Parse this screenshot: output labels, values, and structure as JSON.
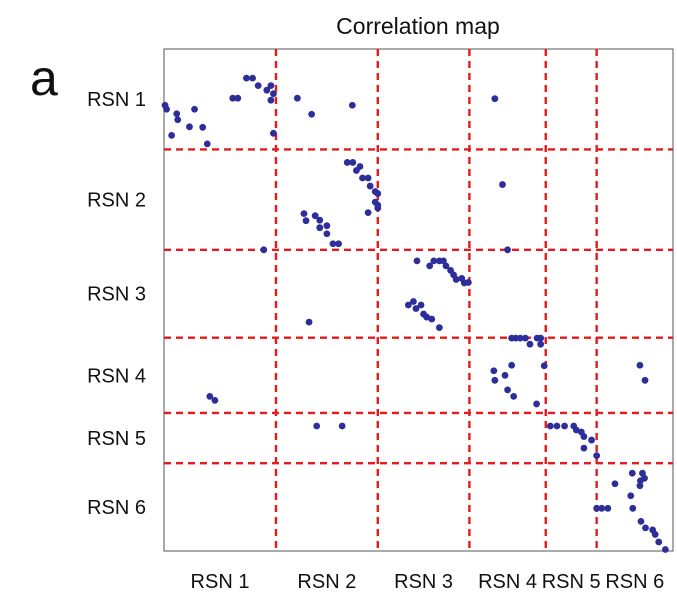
{
  "panel_label": "a",
  "chart_data": {
    "type": "scatter",
    "title": "Correlation map",
    "xlabel": "",
    "ylabel": "",
    "grid": false,
    "colors": {
      "points": "#2e2e9a",
      "dividers": "#e41a1c",
      "frame": "#555555"
    },
    "xlim": [
      0,
      100
    ],
    "ylim": [
      0,
      100
    ],
    "y_inverted": true,
    "x_group_labels": [
      "RSN 1",
      "RSN 2",
      "RSN 3",
      "RSN 4",
      "RSN 5",
      "RSN 6"
    ],
    "y_group_labels": [
      "RSN 1",
      "RSN 2",
      "RSN 3",
      "RSN 4",
      "RSN 5",
      "RSN 6"
    ],
    "x_boundaries": [
      22,
      42,
      60,
      75,
      85
    ],
    "y_boundaries": [
      20,
      40,
      57.5,
      72.5,
      82.5
    ],
    "points": [
      [
        0.2,
        11.2
      ],
      [
        0.5,
        12.0
      ],
      [
        1.5,
        17.2
      ],
      [
        2.5,
        12.9
      ],
      [
        2.7,
        14.1
      ],
      [
        5.0,
        15.5
      ],
      [
        6.0,
        12.0
      ],
      [
        7.6,
        15.6
      ],
      [
        8.5,
        18.9
      ],
      [
        13.5,
        9.8
      ],
      [
        14.5,
        9.8
      ],
      [
        16.2,
        5.8
      ],
      [
        17.4,
        5.8
      ],
      [
        18.5,
        7.3
      ],
      [
        20.2,
        8.2
      ],
      [
        21.0,
        7.3
      ],
      [
        21.5,
        8.9
      ],
      [
        21.5,
        16.8
      ],
      [
        21.0,
        10.2
      ],
      [
        26.2,
        9.8
      ],
      [
        37.0,
        11.2
      ],
      [
        29.0,
        13.0
      ],
      [
        19.6,
        40.0
      ],
      [
        9.0,
        69.2
      ],
      [
        10.0,
        70.0
      ],
      [
        28.5,
        54.4
      ],
      [
        30.0,
        75.1
      ],
      [
        35.0,
        75.1
      ],
      [
        36.0,
        22.6
      ],
      [
        37.1,
        22.6
      ],
      [
        37.8,
        24.2
      ],
      [
        38.5,
        23.4
      ],
      [
        39.0,
        25.7
      ],
      [
        40.1,
        25.7
      ],
      [
        40.5,
        27.3
      ],
      [
        41.5,
        28.4
      ],
      [
        41.5,
        30.5
      ],
      [
        42.0,
        28.8
      ],
      [
        42.0,
        31.7
      ],
      [
        27.5,
        32.8
      ],
      [
        27.9,
        34.2
      ],
      [
        29.7,
        33.2
      ],
      [
        30.6,
        34.1
      ],
      [
        30.6,
        35.6
      ],
      [
        32.0,
        35.2
      ],
      [
        32.0,
        36.8
      ],
      [
        33.2,
        38.8
      ],
      [
        34.3,
        38.8
      ],
      [
        40.1,
        32.6
      ],
      [
        42.0,
        31.1
      ],
      [
        49.7,
        42.2
      ],
      [
        52.2,
        43.2
      ],
      [
        53.0,
        42.2
      ],
      [
        54.1,
        42.2
      ],
      [
        54.9,
        42.2
      ],
      [
        55.4,
        43.2
      ],
      [
        56.3,
        44.1
      ],
      [
        56.9,
        45.0
      ],
      [
        57.4,
        45.9
      ],
      [
        58.5,
        45.7
      ],
      [
        59.0,
        46.6
      ],
      [
        59.8,
        46.5
      ],
      [
        48.0,
        51.0
      ],
      [
        49.0,
        50.3
      ],
      [
        49.5,
        51.7
      ],
      [
        50.5,
        51.0
      ],
      [
        51.0,
        52.8
      ],
      [
        51.6,
        53.4
      ],
      [
        52.6,
        53.8
      ],
      [
        54.1,
        55.5
      ],
      [
        66.5,
        27.0
      ],
      [
        65.0,
        9.9
      ],
      [
        67.5,
        40.0
      ],
      [
        68.3,
        57.6
      ],
      [
        69.1,
        57.6
      ],
      [
        70.0,
        57.6
      ],
      [
        71.0,
        57.6
      ],
      [
        71.9,
        58.8
      ],
      [
        73.3,
        57.6
      ],
      [
        74.0,
        57.6
      ],
      [
        74.0,
        58.8
      ],
      [
        74.7,
        63.1
      ],
      [
        64.8,
        64.1
      ],
      [
        65.0,
        66.0
      ],
      [
        67.0,
        65.0
      ],
      [
        68.3,
        63.0
      ],
      [
        67.5,
        67.9
      ],
      [
        68.7,
        69.2
      ],
      [
        73.2,
        70.7
      ],
      [
        75.9,
        75.1
      ],
      [
        77.2,
        75.1
      ],
      [
        78.7,
        75.1
      ],
      [
        80.5,
        75.1
      ],
      [
        81.0,
        75.9
      ],
      [
        82.0,
        76.3
      ],
      [
        82.5,
        77.2
      ],
      [
        84.0,
        77.9
      ],
      [
        82.5,
        79.5
      ],
      [
        85.0,
        81.0
      ],
      [
        92.0,
        84.5
      ],
      [
        93.5,
        87.0
      ],
      [
        93.6,
        86.0
      ],
      [
        94.0,
        84.5
      ],
      [
        94.4,
        85.5
      ],
      [
        88.6,
        86.6
      ],
      [
        91.7,
        89.0
      ],
      [
        85.0,
        91.5
      ],
      [
        86.0,
        91.5
      ],
      [
        87.2,
        91.5
      ],
      [
        92.1,
        91.5
      ],
      [
        93.7,
        94.1
      ],
      [
        94.6,
        95.4
      ],
      [
        96.0,
        95.8
      ],
      [
        96.5,
        96.7
      ],
      [
        97.2,
        98.2
      ],
      [
        98.5,
        99.7
      ],
      [
        93.5,
        63.0
      ],
      [
        94.5,
        66.0
      ]
    ]
  }
}
